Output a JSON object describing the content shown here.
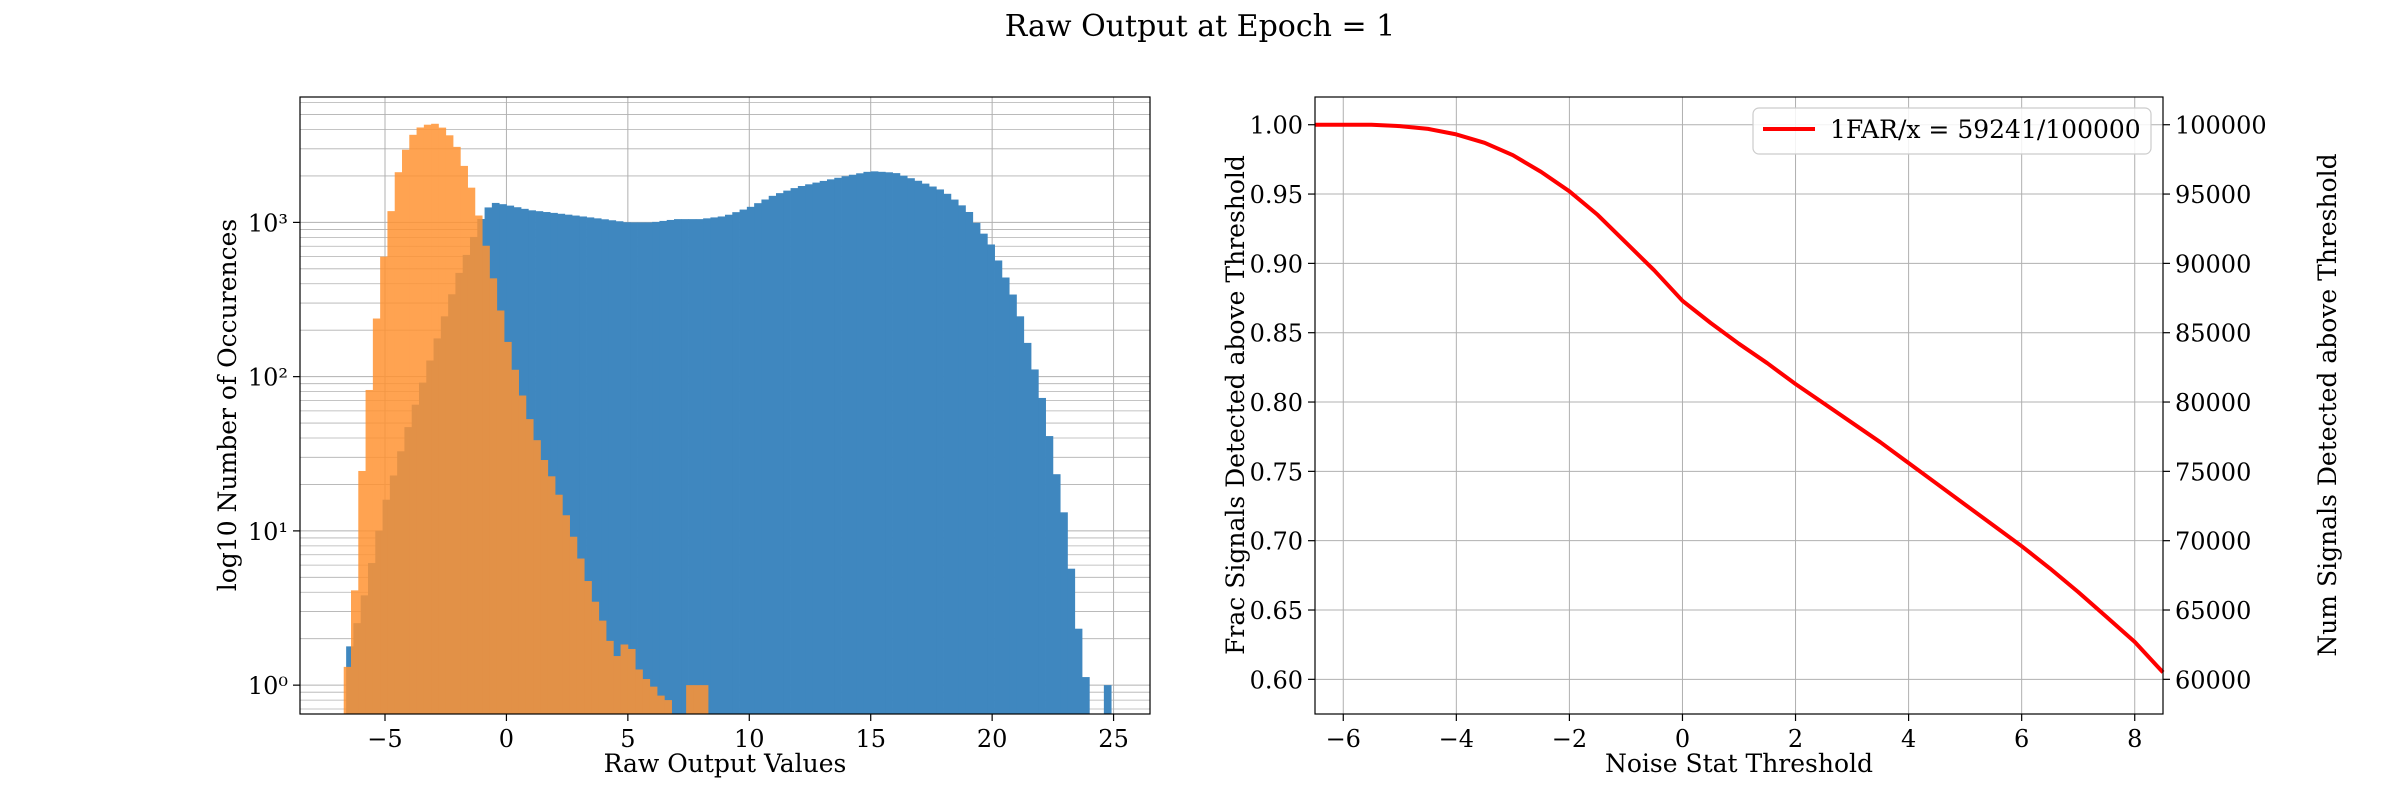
{
  "figure": {
    "title": "Raw Output at Epoch = 1"
  },
  "colors": {
    "blue": "#3f87bf",
    "orange": "#ff9333",
    "overlap": "#dd8433",
    "line": "#ff0000",
    "grid": "#b0b0b0"
  },
  "chart_data": [
    {
      "type": "histogram",
      "xlabel": "Raw Output Values",
      "ylabel": "log10 Number of Occurences",
      "yscale": "log",
      "xlim": [
        -8.5,
        26.5
      ],
      "ylim": [
        0.65,
        6500
      ],
      "x_ticks": [
        "−5",
        "0",
        "5",
        "10",
        "15",
        "20",
        "25"
      ],
      "x_tick_values": [
        -5,
        0,
        5,
        10,
        15,
        20,
        25
      ],
      "y_ticks": [
        "10⁰",
        "10¹",
        "10²",
        "10³"
      ],
      "y_tick_values": [
        1,
        10,
        100,
        1000
      ],
      "grid": true,
      "bin_width": 0.3,
      "series": [
        {
          "color": "blue",
          "points": [
            [
              -6.6,
              1.5
            ],
            [
              -6.0,
              3
            ],
            [
              -5.0,
              15
            ],
            [
              -4.0,
              50
            ],
            [
              -3.0,
              150
            ],
            [
              -2.0,
              450
            ],
            [
              -1.0,
              1100
            ],
            [
              -0.6,
              1350
            ],
            [
              0,
              1300
            ],
            [
              1,
              1200
            ],
            [
              2,
              1150
            ],
            [
              3,
              1100
            ],
            [
              4,
              1050
            ],
            [
              5,
              1000
            ],
            [
              6,
              1000
            ],
            [
              7,
              1050
            ],
            [
              8,
              1050
            ],
            [
              9,
              1100
            ],
            [
              10,
              1250
            ],
            [
              11,
              1500
            ],
            [
              12,
              1700
            ],
            [
              13,
              1850
            ],
            [
              14,
              2000
            ],
            [
              15,
              2150
            ],
            [
              16,
              2100
            ],
            [
              17,
              1850
            ],
            [
              18,
              1600
            ],
            [
              19,
              1200
            ],
            [
              20,
              700
            ],
            [
              21,
              300
            ],
            [
              22,
              80
            ],
            [
              23,
              12
            ],
            [
              23.6,
              2
            ],
            [
              24.0,
              0.8
            ],
            [
              24.2,
              0
            ],
            [
              24.6,
              0
            ],
            [
              24.9,
              1
            ]
          ]
        },
        {
          "color": "orange",
          "points": [
            [
              -6.7,
              0.8
            ],
            [
              -6.3,
              3
            ],
            [
              -6.0,
              20
            ],
            [
              -5.5,
              150
            ],
            [
              -5.0,
              700
            ],
            [
              -4.5,
              2000
            ],
            [
              -4.0,
              3500
            ],
            [
              -3.5,
              4200
            ],
            [
              -3.0,
              4400
            ],
            [
              -2.5,
              4000
            ],
            [
              -2.0,
              3000
            ],
            [
              -1.5,
              1800
            ],
            [
              -1.0,
              900
            ],
            [
              -0.5,
              400
            ],
            [
              0,
              180
            ],
            [
              0.5,
              90
            ],
            [
              1,
              50
            ],
            [
              1.5,
              30
            ],
            [
              2,
              20
            ],
            [
              2.5,
              12
            ],
            [
              3,
              7
            ],
            [
              3.5,
              4
            ],
            [
              4,
              2.5
            ],
            [
              4.5,
              1.5
            ],
            [
              5,
              2
            ],
            [
              5.5,
              1.2
            ],
            [
              6,
              1
            ],
            [
              6.5,
              0.8
            ],
            [
              7,
              0
            ],
            [
              8,
              1
            ],
            [
              8.5,
              0
            ]
          ]
        }
      ]
    },
    {
      "type": "line",
      "xlabel": "Noise Stat Threshold",
      "ylabel": "Frac Signals Detected above Threshold",
      "ylabel_right": "Num Signals Detected above Threshold",
      "xlim": [
        -6.5,
        8.5
      ],
      "ylim": [
        0.575,
        1.02
      ],
      "ylim_right": [
        57500,
        102000
      ],
      "x_ticks": [
        "−6",
        "−4",
        "−2",
        "0",
        "2",
        "4",
        "6",
        "8"
      ],
      "x_tick_values": [
        -6,
        -4,
        -2,
        0,
        2,
        4,
        6,
        8
      ],
      "y_ticks": [
        "0.60",
        "0.65",
        "0.70",
        "0.75",
        "0.80",
        "0.85",
        "0.90",
        "0.95",
        "1.00"
      ],
      "y_tick_values": [
        0.6,
        0.65,
        0.7,
        0.75,
        0.8,
        0.85,
        0.9,
        0.95,
        1.0
      ],
      "y_ticks_right": [
        "60000",
        "65000",
        "70000",
        "75000",
        "80000",
        "85000",
        "90000",
        "95000",
        "100000"
      ],
      "y_tick_values_right": [
        60000,
        65000,
        70000,
        75000,
        80000,
        85000,
        90000,
        95000,
        100000
      ],
      "grid": true,
      "legend": {
        "position": "top-right",
        "label": "1FAR/x = 59241/100000"
      },
      "series": [
        {
          "name": "1FAR/x = 59241/100000",
          "color": "line",
          "points": [
            [
              -6.5,
              1.0
            ],
            [
              -6.0,
              1.0
            ],
            [
              -5.5,
              1.0
            ],
            [
              -5.0,
              0.999
            ],
            [
              -4.5,
              0.997
            ],
            [
              -4.0,
              0.993
            ],
            [
              -3.5,
              0.987
            ],
            [
              -3.0,
              0.978
            ],
            [
              -2.5,
              0.966
            ],
            [
              -2.0,
              0.952
            ],
            [
              -1.5,
              0.935
            ],
            [
              -1.0,
              0.915
            ],
            [
              -0.5,
              0.895
            ],
            [
              0,
              0.873
            ],
            [
              0.5,
              0.857
            ],
            [
              1.0,
              0.842
            ],
            [
              1.5,
              0.828
            ],
            [
              2.0,
              0.813
            ],
            [
              2.5,
              0.799
            ],
            [
              3.0,
              0.785
            ],
            [
              3.5,
              0.771
            ],
            [
              4.0,
              0.756
            ],
            [
              4.5,
              0.741
            ],
            [
              5.0,
              0.726
            ],
            [
              5.5,
              0.711
            ],
            [
              6.0,
              0.696
            ],
            [
              6.5,
              0.68
            ],
            [
              7.0,
              0.663
            ],
            [
              7.5,
              0.645
            ],
            [
              8.0,
              0.627
            ],
            [
              8.5,
              0.605
            ]
          ]
        }
      ]
    }
  ]
}
